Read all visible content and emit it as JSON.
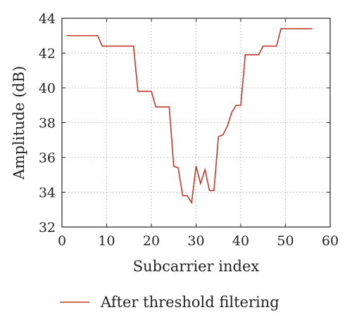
{
  "chart_data": {
    "type": "line",
    "title": "",
    "xlabel": "Subcarrier index",
    "ylabel": "Amplitude (dB)",
    "xlim": [
      0,
      60
    ],
    "ylim": [
      32,
      44
    ],
    "xticks": [
      "0",
      "10",
      "20",
      "30",
      "40",
      "50",
      "60"
    ],
    "yticks": [
      "32",
      "34",
      "36",
      "38",
      "40",
      "42",
      "44"
    ],
    "grid": true,
    "legend_position": "bottom",
    "series": [
      {
        "name": "After threshold filtering",
        "color": "#c0392b",
        "x": [
          1,
          8,
          9,
          16,
          17,
          20,
          21,
          24,
          25,
          26,
          27,
          28,
          29,
          30,
          31,
          32,
          33,
          34,
          35,
          36,
          37,
          38,
          39,
          40,
          41,
          44,
          45,
          48,
          49,
          56
        ],
        "y": [
          43.0,
          43.0,
          42.4,
          42.4,
          39.8,
          39.8,
          38.9,
          38.9,
          35.5,
          35.4,
          33.8,
          33.8,
          33.4,
          35.5,
          34.5,
          35.3,
          34.1,
          34.1,
          37.2,
          37.3,
          37.8,
          38.6,
          39.0,
          39.0,
          41.9,
          41.9,
          42.4,
          42.4,
          43.4,
          43.4
        ]
      }
    ]
  }
}
